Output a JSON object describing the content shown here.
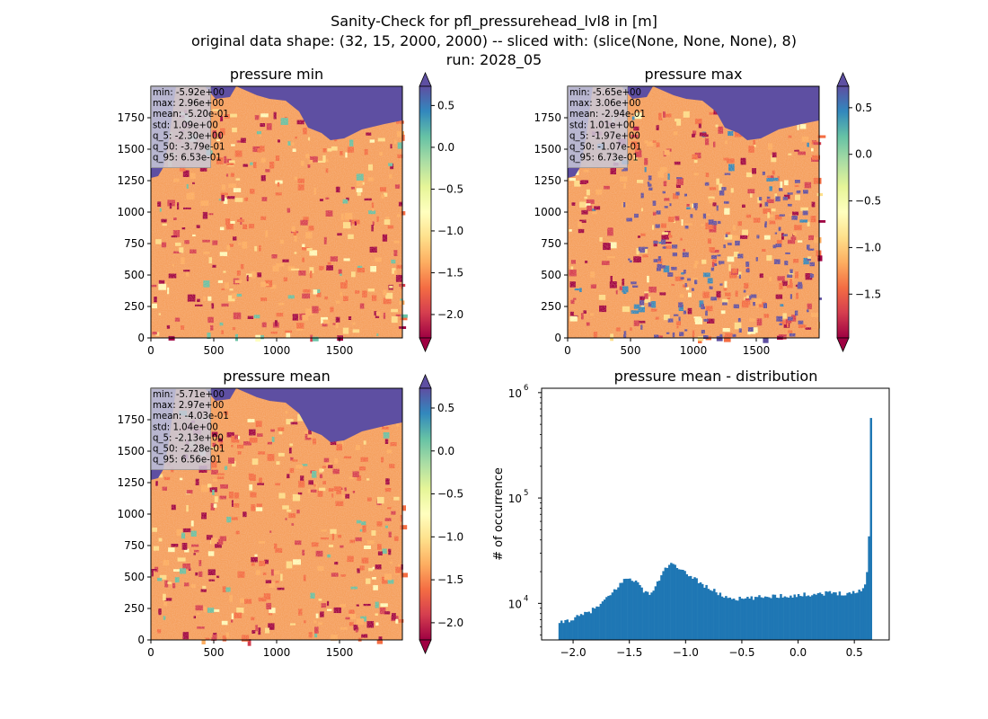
{
  "figure": {
    "title_lines": [
      "Sanity-Check for pfl_pressurehead_lvl8 in [m]",
      "original data shape: (32, 15, 2000, 2000) -- sliced with: (slice(None, None, None), 8)",
      "run: 2028_05"
    ]
  },
  "colormap": "Spectral",
  "colors": {
    "histogram_bar": "#1f77b4",
    "water": "#5e4fa2",
    "stats_box_bg": "#c8c8d8"
  },
  "panels": [
    {
      "title": "pressure min",
      "xticks": [
        "0",
        "500",
        "1000",
        "1500"
      ],
      "yticks": [
        "0",
        "250",
        "500",
        "750",
        "1000",
        "1250",
        "1500",
        "1750"
      ],
      "cbar_ticks": [
        "0.5",
        "0.0",
        "−0.5",
        "−1.0",
        "−1.5",
        "−2.0"
      ],
      "cbar_tick_values": [
        0.5,
        0.0,
        -0.5,
        -1.0,
        -1.5,
        -2.0
      ],
      "cbar_range": [
        -2.28,
        0.73
      ],
      "stats": [
        "min: -5.92e+00",
        "max: 2.96e+00",
        "mean: -5.20e-01",
        "std: 1.09e+00",
        "q_5: -2.30e+00",
        "q_50: -3.79e-01",
        "q_95: 6.53e-01"
      ]
    },
    {
      "title": "pressure max",
      "xticks": [
        "0",
        "500",
        "1000",
        "1500"
      ],
      "yticks": [
        "0",
        "250",
        "500",
        "750",
        "1000",
        "1250",
        "1500",
        "1750"
      ],
      "cbar_ticks": [
        "0.5",
        "0.0",
        "−0.5",
        "−1.0",
        "−1.5"
      ],
      "cbar_tick_values": [
        0.5,
        0.0,
        -0.5,
        -1.0,
        -1.5
      ],
      "cbar_range": [
        -1.97,
        0.73
      ],
      "stats": [
        "min: -5.65e+00",
        "max: 3.06e+00",
        "mean: -2.94e-01",
        "std: 1.01e+00",
        "q_5: -1.97e+00",
        "q_50: -1.07e-01",
        "q_95: 6.73e-01"
      ]
    },
    {
      "title": "pressure mean",
      "xticks": [
        "0",
        "500",
        "1000",
        "1500"
      ],
      "yticks": [
        "0",
        "250",
        "500",
        "750",
        "1000",
        "1250",
        "1500",
        "1750"
      ],
      "cbar_ticks": [
        "0.5",
        "0.0",
        "−0.5",
        "−1.0",
        "−1.5",
        "−2.0"
      ],
      "cbar_tick_values": [
        0.5,
        0.0,
        -0.5,
        -1.0,
        -1.5,
        -2.0
      ],
      "cbar_range": [
        -2.2,
        0.73
      ],
      "stats": [
        "min: -5.71e+00",
        "max: 2.97e+00",
        "mean: -4.03e-01",
        "std: 1.04e+00",
        "q_5: -2.13e+00",
        "q_50: -2.28e-01",
        "q_95: 6.56e-01"
      ]
    }
  ],
  "chart_data": {
    "type": "bar",
    "title": "pressure mean - distribution",
    "xlabel": "",
    "ylabel": "# of occurrence",
    "yscale": "log",
    "xlim": [
      -2.28,
      0.81
    ],
    "ylim": [
      4500,
      1100000
    ],
    "xticks": [
      -2.0,
      -1.5,
      -1.0,
      -0.5,
      0.0,
      0.5
    ],
    "xtick_labels": [
      "−2.0",
      "−1.5",
      "−1.0",
      "−0.5",
      "0.0",
      "0.5"
    ],
    "yticks": [
      10000,
      100000,
      1000000
    ],
    "ytick_labels": [
      "10",
      "10",
      "10"
    ],
    "ytick_exponents": [
      "4",
      "5",
      "6"
    ],
    "bins": {
      "start": -2.13,
      "end": 0.656,
      "count": 160
    },
    "profile": [
      {
        "x": -2.13,
        "y": 6200
      },
      {
        "x": -2.1,
        "y": 6600
      },
      {
        "x": -2.05,
        "y": 6900
      },
      {
        "x": -2.0,
        "y": 7100
      },
      {
        "x": -1.95,
        "y": 7500
      },
      {
        "x": -1.9,
        "y": 7900
      },
      {
        "x": -1.85,
        "y": 8400
      },
      {
        "x": -1.8,
        "y": 9000
      },
      {
        "x": -1.75,
        "y": 9900
      },
      {
        "x": -1.7,
        "y": 11100
      },
      {
        "x": -1.65,
        "y": 12600
      },
      {
        "x": -1.6,
        "y": 14600
      },
      {
        "x": -1.55,
        "y": 16500
      },
      {
        "x": -1.5,
        "y": 17500
      },
      {
        "x": -1.45,
        "y": 16600
      },
      {
        "x": -1.4,
        "y": 14300
      },
      {
        "x": -1.35,
        "y": 12400
      },
      {
        "x": -1.3,
        "y": 12700
      },
      {
        "x": -1.25,
        "y": 15500
      },
      {
        "x": -1.2,
        "y": 20000
      },
      {
        "x": -1.15,
        "y": 23500
      },
      {
        "x": -1.1,
        "y": 23000
      },
      {
        "x": -1.05,
        "y": 20500
      },
      {
        "x": -1.0,
        "y": 19300
      },
      {
        "x": -0.95,
        "y": 18200
      },
      {
        "x": -0.9,
        "y": 16800
      },
      {
        "x": -0.85,
        "y": 15000
      },
      {
        "x": -0.8,
        "y": 14100
      },
      {
        "x": -0.75,
        "y": 13200
      },
      {
        "x": -0.7,
        "y": 12200
      },
      {
        "x": -0.65,
        "y": 11600
      },
      {
        "x": -0.6,
        "y": 11300
      },
      {
        "x": -0.55,
        "y": 11100
      },
      {
        "x": -0.5,
        "y": 11000
      },
      {
        "x": -0.4,
        "y": 11200
      },
      {
        "x": -0.3,
        "y": 11600
      },
      {
        "x": -0.2,
        "y": 11800
      },
      {
        "x": -0.1,
        "y": 11800
      },
      {
        "x": 0.0,
        "y": 11900
      },
      {
        "x": 0.1,
        "y": 12200
      },
      {
        "x": 0.2,
        "y": 12400
      },
      {
        "x": 0.3,
        "y": 12600
      },
      {
        "x": 0.4,
        "y": 12500
      },
      {
        "x": 0.45,
        "y": 12400
      },
      {
        "x": 0.5,
        "y": 12700
      },
      {
        "x": 0.55,
        "y": 13300
      },
      {
        "x": 0.58,
        "y": 14000
      },
      {
        "x": 0.6,
        "y": 15500
      },
      {
        "x": 0.62,
        "y": 23000
      },
      {
        "x": 0.635,
        "y": 60000
      },
      {
        "x": 0.645,
        "y": 780000
      },
      {
        "x": 0.656,
        "y": 180000
      }
    ]
  }
}
